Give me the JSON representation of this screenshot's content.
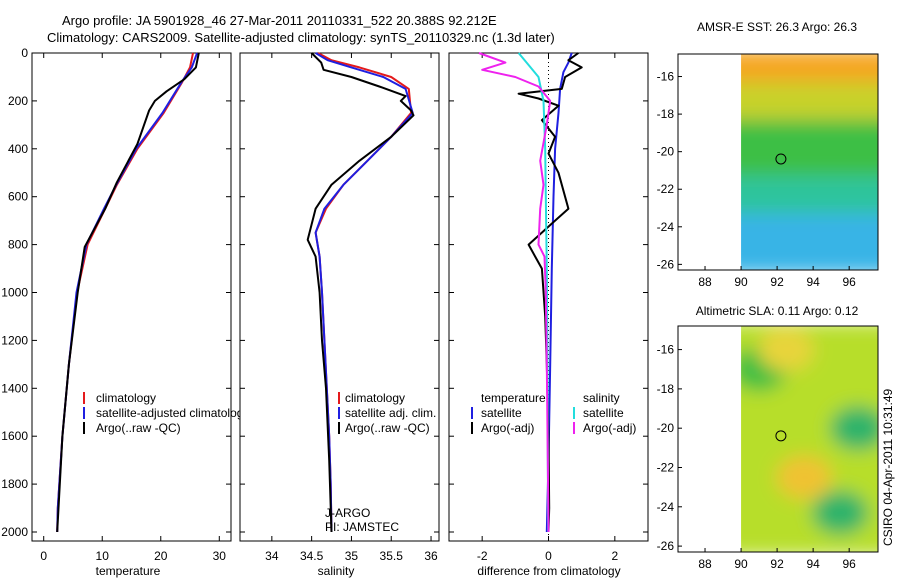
{
  "header": {
    "line1": "Argo profile: JA 5901928_46 27-Mar-2011 20110331_522 20.388S 92.212E",
    "line2": "Climatology: CARS2009. Satellite-adjusted climatology: synTS_20110329.nc (1.3d later)"
  },
  "credit": "CSIRO 04-Apr-2011 10:31:49",
  "colors": {
    "red": "#e41a1c",
    "blue": "#1f1fe0",
    "black": "#000000",
    "cyan": "#22dddd",
    "magenta": "#ee22ee"
  },
  "chart_data": [
    {
      "id": "temperature",
      "type": "line",
      "xlabel": "temperature",
      "ylabel": "",
      "xlim": [
        -2,
        32
      ],
      "ylim": [
        2100,
        0
      ],
      "xticks": [
        "0",
        "10",
        "20",
        "30"
      ],
      "xtick_values": [
        0,
        10,
        20,
        30
      ],
      "yticks": [
        "0",
        "200",
        "400",
        "600",
        "800",
        "1000",
        "1200",
        "1400",
        "1600",
        "1800",
        "2000"
      ],
      "ytick_values": [
        0,
        200,
        400,
        600,
        800,
        1000,
        1200,
        1400,
        1600,
        1800,
        2000
      ],
      "legend": {
        "location": "lower-left",
        "entries": [
          "climatology",
          "satellite-adjusted climatology",
          "Argo(..raw -QC)"
        ]
      },
      "series": [
        {
          "name": "climatology",
          "color": "#e41a1c",
          "x": [
            25.5,
            25.0,
            23.7,
            20.5,
            16.0,
            12.5,
            10.5,
            7.5,
            5.7,
            4.3,
            3.2,
            2.4,
            2.3
          ],
          "y": [
            0,
            60,
            120,
            250,
            400,
            550,
            650,
            800,
            1000,
            1300,
            1600,
            1900,
            2000
          ]
        },
        {
          "name": "satellite-adjusted climatology",
          "color": "#1f1fe0",
          "x": [
            26.2,
            25.3,
            23.6,
            20.3,
            15.8,
            12.4,
            10.3,
            7.3,
            5.6,
            4.3,
            3.2,
            2.4,
            2.3
          ],
          "y": [
            0,
            60,
            120,
            250,
            400,
            550,
            650,
            800,
            1000,
            1300,
            1600,
            1900,
            2000
          ]
        },
        {
          "name": "Argo(..raw -QC)",
          "color": "#000000",
          "x": [
            26.5,
            26.0,
            24.0,
            21.0,
            19.0,
            18.0,
            16.0,
            12.5,
            10.5,
            7.0,
            5.8,
            4.3,
            3.2,
            2.3
          ],
          "y": [
            0,
            60,
            110,
            160,
            200,
            240,
            380,
            540,
            650,
            810,
            1000,
            1300,
            1600,
            2000
          ]
        }
      ]
    },
    {
      "id": "salinity",
      "type": "line",
      "xlabel": "salinity",
      "ylabel": "",
      "xlim": [
        33.6,
        36.1
      ],
      "ylim": [
        2100,
        0
      ],
      "xticks": [
        "34",
        "34.5",
        "35",
        "35.5",
        "36"
      ],
      "xtick_values": [
        34,
        34.5,
        35,
        35.5,
        36
      ],
      "legend": {
        "location": "lower-right",
        "entries": [
          "climatology",
          "satellite adj. clim.",
          "Argo(..raw -QC)"
        ]
      },
      "annotations": [
        "J-ARGO",
        "PI: JAMSTEC"
      ],
      "series": [
        {
          "name": "climatology",
          "color": "#e41a1c",
          "x": [
            34.58,
            34.75,
            35.1,
            35.5,
            35.72,
            35.75,
            35.5,
            35.2,
            34.9,
            34.68,
            34.55,
            34.6,
            34.63,
            34.66,
            34.69,
            34.72,
            34.74,
            34.75
          ],
          "y": [
            0,
            30,
            60,
            100,
            150,
            250,
            350,
            450,
            550,
            650,
            750,
            850,
            1000,
            1200,
            1400,
            1600,
            1800,
            2000
          ]
        },
        {
          "name": "satellite adj. clim.",
          "color": "#1f1fe0",
          "x": [
            34.55,
            34.7,
            35.0,
            35.4,
            35.68,
            35.77,
            35.5,
            35.2,
            34.9,
            34.66,
            34.55,
            34.6,
            34.63,
            34.66,
            34.69,
            34.72,
            34.74,
            34.75
          ],
          "y": [
            0,
            30,
            60,
            100,
            150,
            250,
            350,
            450,
            550,
            650,
            750,
            850,
            1000,
            1200,
            1400,
            1600,
            1800,
            2000
          ]
        },
        {
          "name": "Argo(..raw -QC)",
          "color": "#000000",
          "x": [
            34.5,
            34.62,
            34.65,
            35.0,
            35.35,
            35.68,
            35.62,
            35.75,
            35.78,
            35.5,
            35.1,
            34.75,
            34.55,
            34.45,
            34.55,
            34.6,
            34.63,
            34.68,
            34.72,
            34.75
          ],
          "y": [
            0,
            40,
            70,
            100,
            140,
            180,
            200,
            240,
            260,
            350,
            450,
            550,
            650,
            780,
            850,
            1000,
            1200,
            1400,
            1700,
            2000
          ]
        }
      ]
    },
    {
      "id": "difference",
      "type": "line",
      "xlabel": "difference from climatology",
      "ylabel": "",
      "xlim": [
        -3,
        3
      ],
      "ylim": [
        2100,
        0
      ],
      "xticks": [
        "-2",
        "0",
        "2"
      ],
      "xtick_values": [
        -2,
        0,
        2
      ],
      "legend": {
        "location": "lower-center",
        "groups": [
          "temperature",
          "salinity"
        ],
        "entries": [
          "satellite",
          "Argo(-adj)",
          "satellite",
          "Argo(-adj)"
        ]
      },
      "series": [
        {
          "name": "temperature satellite",
          "color": "#1f1fe0",
          "x": [
            0.7,
            0.6,
            0.45,
            0.35,
            0.3,
            0.2,
            0.15,
            0.1,
            0.05,
            0.0,
            -0.05
          ],
          "y": [
            0,
            40,
            80,
            150,
            250,
            400,
            600,
            900,
            1300,
            1700,
            2000
          ]
        },
        {
          "name": "temperature Argo(-adj)",
          "color": "#000000",
          "x": [
            0.9,
            0.6,
            1.0,
            0.5,
            0.4,
            -0.9,
            -0.3,
            0.3,
            -0.2,
            0.2,
            0.0,
            0.3,
            0.6,
            0.2,
            -0.6,
            -0.4,
            -0.2,
            -0.1,
            -0.05,
            0.0,
            0.02,
            0.0
          ],
          "y": [
            0,
            30,
            60,
            100,
            150,
            170,
            190,
            220,
            280,
            350,
            420,
            500,
            650,
            700,
            800,
            850,
            900,
            1100,
            1300,
            1600,
            1900,
            2000
          ]
        },
        {
          "name": "salinity satellite",
          "color": "#22dddd",
          "x": [
            -0.9,
            -0.6,
            -0.3,
            -0.15,
            -0.1,
            -0.08,
            -0.05,
            -0.03,
            -0.02,
            -0.01
          ],
          "y": [
            0,
            50,
            100,
            200,
            400,
            600,
            900,
            1300,
            1700,
            2000
          ]
        },
        {
          "name": "salinity Argo(-adj)",
          "color": "#ee22ee",
          "x": [
            -2.1,
            -1.3,
            -2.0,
            -1.0,
            -0.3,
            0.05,
            -0.05,
            -0.25,
            -0.15,
            -0.25,
            -0.3,
            -0.12,
            -0.08,
            -0.05,
            -0.02,
            0.0
          ],
          "y": [
            0,
            40,
            70,
            100,
            140,
            200,
            300,
            450,
            550,
            650,
            800,
            850,
            1000,
            1300,
            1700,
            2000
          ]
        }
      ]
    },
    {
      "id": "sst_map",
      "type": "heatmap",
      "title": "AMSR-E SST: 26.3 Argo: 26.3",
      "xlim": [
        86.5,
        97.6
      ],
      "ylim": [
        -26.3,
        -14.8
      ],
      "xticks": [
        "88",
        "90",
        "92",
        "94",
        "96"
      ],
      "xtick_values": [
        88,
        90,
        92,
        94,
        96
      ],
      "yticks": [
        "-16",
        "-18",
        "-20",
        "-22",
        "-24",
        "-26"
      ],
      "ytick_values": [
        -16,
        -18,
        -20,
        -22,
        -24,
        -26
      ],
      "data_lon_range": [
        90,
        97.6
      ],
      "marker": {
        "lon": 92.212,
        "lat": -20.388
      },
      "regions": [
        {
          "lat_from": -14.8,
          "lat_to": -16.5,
          "color": "#f5a623"
        },
        {
          "lat_from": -16.5,
          "lat_to": -18.5,
          "color": "#c8d22a"
        },
        {
          "lat_from": -18.5,
          "lat_to": -21.5,
          "color": "#3cbf45"
        },
        {
          "lat_from": -21.5,
          "lat_to": -23.5,
          "color": "#2fc49c"
        },
        {
          "lat_from": -23.5,
          "lat_to": -26.3,
          "color": "#37b4e6"
        }
      ]
    },
    {
      "id": "sla_map",
      "type": "heatmap",
      "title": "Altimetric SLA: 0.11 Argo: 0.12",
      "xlim": [
        86.5,
        97.6
      ],
      "ylim": [
        -26.3,
        -14.8
      ],
      "xticks": [
        "88",
        "90",
        "92",
        "94",
        "96"
      ],
      "xtick_values": [
        88,
        90,
        92,
        94,
        96
      ],
      "yticks": [
        "-16",
        "-18",
        "-20",
        "-22",
        "-24",
        "-26"
      ],
      "ytick_values": [
        -16,
        -18,
        -20,
        -22,
        -24,
        -26
      ],
      "data_lon_range": [
        90,
        97.6
      ],
      "marker": {
        "lon": 92.212,
        "lat": -20.388
      },
      "regions": [
        {
          "lat_from": -14.8,
          "lat_to": -26.3,
          "color": "#b7de2c"
        }
      ],
      "blobs": [
        {
          "lon": 96.5,
          "lat": -20.0,
          "color": "#2fb46a"
        },
        {
          "lon": 95.5,
          "lat": -24.3,
          "color": "#2fb46a"
        },
        {
          "lon": 93.5,
          "lat": -22.5,
          "color": "#f0c230"
        },
        {
          "lon": 91.0,
          "lat": -17.0,
          "color": "#3cbf45"
        },
        {
          "lon": 92.5,
          "lat": -16.0,
          "color": "#e8d43a"
        }
      ]
    }
  ]
}
